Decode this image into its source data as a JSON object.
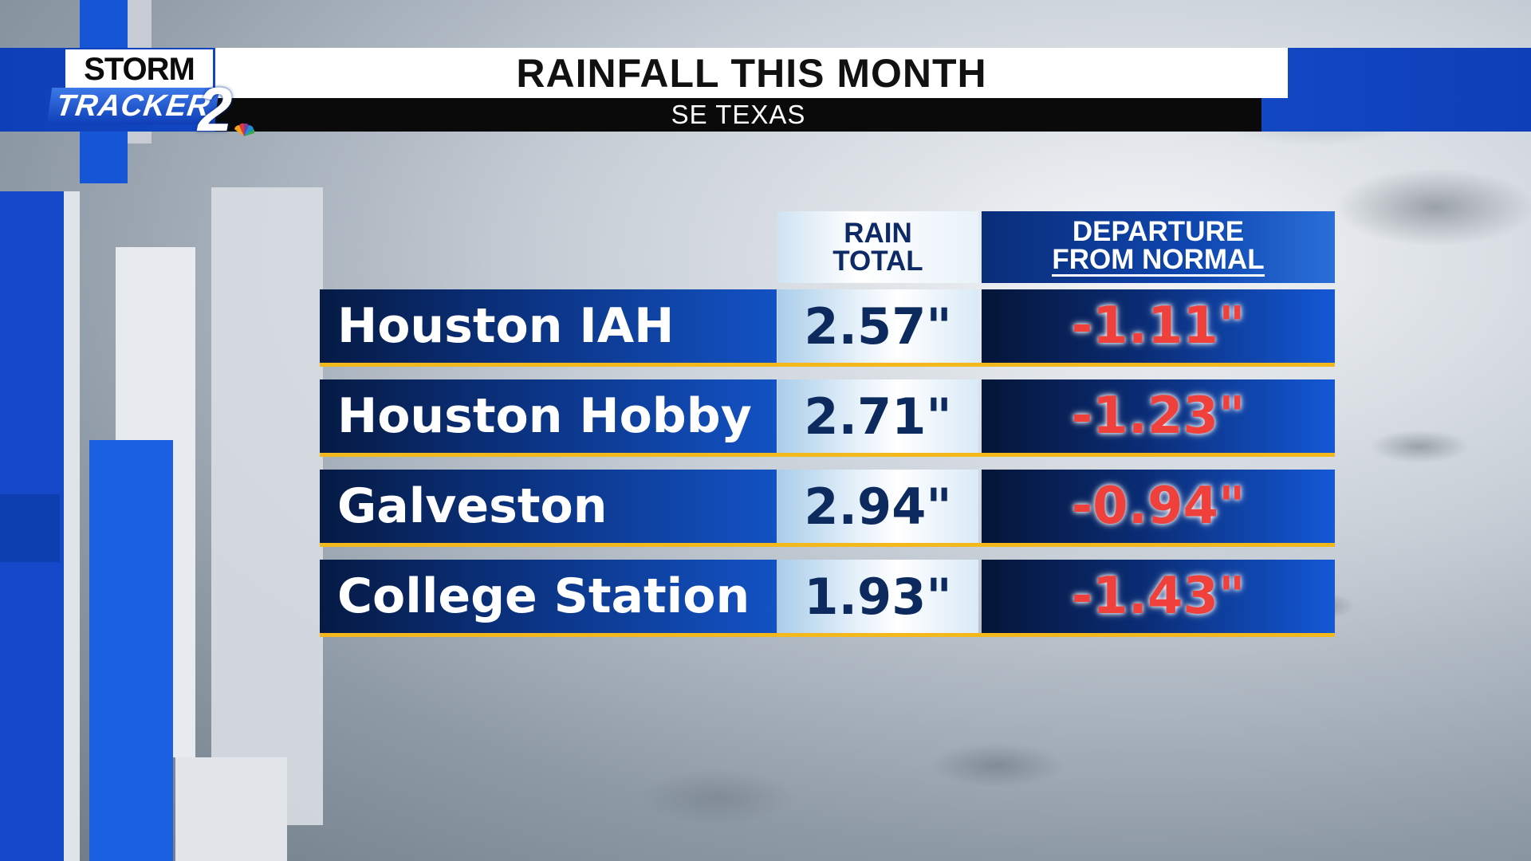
{
  "header": {
    "title": "RAINFALL THIS MONTH",
    "subtitle": "SE TEXAS"
  },
  "logo": {
    "line1": "STORM",
    "line2": "TRACKER",
    "number": "2"
  },
  "colors": {
    "brand_blue": "#1448c8",
    "departure_red": "#f0403c",
    "accent_gold": "#f2b81c"
  },
  "chart_data": {
    "type": "table",
    "columns": [
      "RAIN TOTAL",
      "DEPARTURE FROM NORMAL"
    ],
    "column_headers": {
      "rain_line1": "RAIN",
      "rain_line2": "TOTAL",
      "dep_line1": "DEPARTURE",
      "dep_line2": "FROM NORMAL"
    },
    "unit": "inches",
    "rows": [
      {
        "location": "Houston IAH",
        "total": "2.57\"",
        "departure": "-1.11\""
      },
      {
        "location": "Houston Hobby",
        "total": "2.71\"",
        "departure": "-1.23\""
      },
      {
        "location": "Galveston",
        "total": "2.94\"",
        "departure": "-0.94\""
      },
      {
        "location": "College Station",
        "total": "1.93\"",
        "departure": "-1.43\""
      }
    ],
    "values": {
      "total": [
        2.57,
        2.71,
        2.94,
        1.93
      ],
      "departure": [
        -1.11,
        -1.23,
        -0.94,
        -1.43
      ]
    }
  }
}
